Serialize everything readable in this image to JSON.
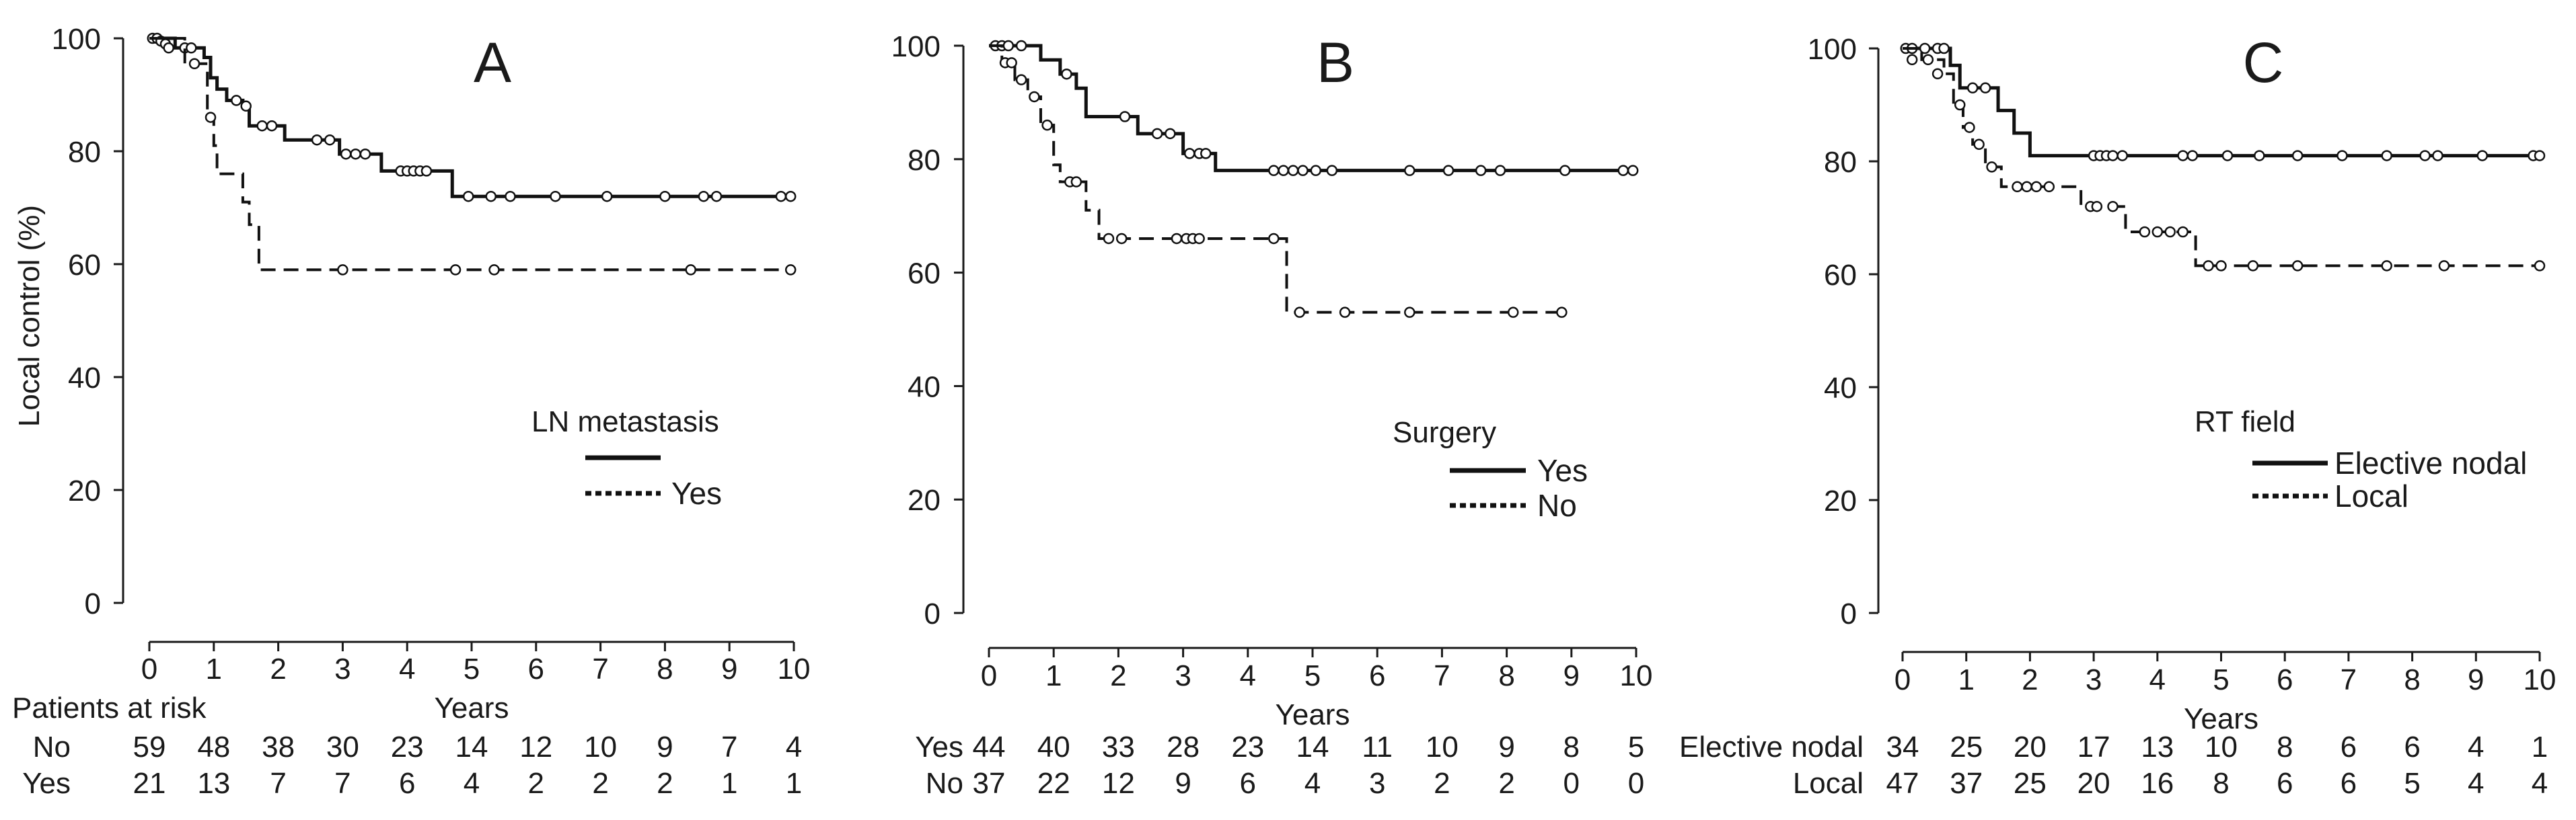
{
  "chart_data": [
    {
      "type": "line",
      "panel": "A",
      "ylabel": "Local control (%)",
      "xlabel": "Years",
      "xlim": [
        0,
        10
      ],
      "ylim": [
        0,
        100
      ],
      "xticks": [
        "0",
        "1",
        "2",
        "3",
        "4",
        "5",
        "6",
        "7",
        "8",
        "9",
        "10"
      ],
      "yticks": [
        "0",
        "20",
        "40",
        "60",
        "80",
        "100"
      ],
      "legend": {
        "title": "LN metastasis",
        "entries": [
          "",
          "Yes"
        ],
        "position": "center-right"
      },
      "series": [
        {
          "name": "No",
          "style": "solid",
          "steps": [
            [
              0,
              100
            ],
            [
              0.4,
              98.3
            ],
            [
              0.85,
              96.6
            ],
            [
              0.95,
              93
            ],
            [
              1.05,
              91
            ],
            [
              1.2,
              89
            ],
            [
              1.45,
              88
            ],
            [
              1.55,
              84.5
            ],
            [
              2.1,
              82
            ],
            [
              2.95,
              79.5
            ],
            [
              3.6,
              76.5
            ],
            [
              4.7,
              72
            ],
            [
              10,
              72
            ]
          ],
          "censored": [
            [
              0.05,
              100
            ],
            [
              0.12,
              100
            ],
            [
              0.18,
              99.5
            ],
            [
              0.25,
              99
            ],
            [
              0.3,
              98.3
            ],
            [
              0.55,
              98.3
            ],
            [
              0.65,
              98.3
            ],
            [
              1.35,
              89
            ],
            [
              1.5,
              88
            ],
            [
              1.75,
              84.5
            ],
            [
              1.9,
              84.5
            ],
            [
              2.6,
              82
            ],
            [
              2.8,
              82
            ],
            [
              3.05,
              79.5
            ],
            [
              3.2,
              79.5
            ],
            [
              3.35,
              79.5
            ],
            [
              3.9,
              76.5
            ],
            [
              4.0,
              76.5
            ],
            [
              4.1,
              76.5
            ],
            [
              4.2,
              76.5
            ],
            [
              4.3,
              76.5
            ],
            [
              4.95,
              72
            ],
            [
              5.3,
              72
            ],
            [
              5.6,
              72
            ],
            [
              6.3,
              72
            ],
            [
              7.1,
              72
            ],
            [
              8.0,
              72
            ],
            [
              8.6,
              72
            ],
            [
              8.8,
              72
            ],
            [
              9.8,
              72
            ],
            [
              9.95,
              72
            ]
          ]
        },
        {
          "name": "Yes",
          "style": "dashed",
          "steps": [
            [
              0,
              100
            ],
            [
              0.55,
              95.5
            ],
            [
              0.9,
              86
            ],
            [
              1.0,
              81
            ],
            [
              1.05,
              76
            ],
            [
              1.45,
              71
            ],
            [
              1.55,
              67
            ],
            [
              1.7,
              59
            ],
            [
              10,
              59
            ]
          ],
          "censored": [
            [
              0.7,
              95.5
            ],
            [
              0.95,
              86
            ],
            [
              3.0,
              59
            ],
            [
              4.75,
              59
            ],
            [
              5.35,
              59
            ],
            [
              8.4,
              59
            ],
            [
              9.95,
              59
            ]
          ]
        }
      ],
      "at_risk": {
        "header": "Patients at risk",
        "rows": [
          {
            "label": "No",
            "values": [
              "59",
              "48",
              "38",
              "30",
              "23",
              "14",
              "12",
              "10",
              "9",
              "7",
              "4"
            ]
          },
          {
            "label": "Yes",
            "values": [
              "21",
              "13",
              "7",
              "7",
              "6",
              "4",
              "2",
              "2",
              "2",
              "1",
              "1"
            ]
          }
        ]
      }
    },
    {
      "type": "line",
      "panel": "B",
      "ylabel": "",
      "xlabel": "Years",
      "xlim": [
        0,
        10
      ],
      "ylim": [
        0,
        100
      ],
      "xticks": [
        "0",
        "1",
        "2",
        "3",
        "4",
        "5",
        "6",
        "7",
        "8",
        "9",
        "10"
      ],
      "yticks": [
        "0",
        "20",
        "40",
        "60",
        "80",
        "100"
      ],
      "legend": {
        "title": "Surgery",
        "entries": [
          "Yes",
          "No"
        ],
        "position": "center-right"
      },
      "series": [
        {
          "name": "Yes",
          "style": "solid",
          "steps": [
            [
              0,
              100
            ],
            [
              0.8,
              97.5
            ],
            [
              1.1,
              95
            ],
            [
              1.35,
              92.5
            ],
            [
              1.5,
              87.5
            ],
            [
              2.3,
              84.5
            ],
            [
              3.0,
              81
            ],
            [
              3.5,
              78
            ],
            [
              10,
              78
            ]
          ],
          "censored": [
            [
              0.1,
              100
            ],
            [
              0.2,
              100
            ],
            [
              0.3,
              100
            ],
            [
              0.5,
              100
            ],
            [
              1.2,
              95
            ],
            [
              2.1,
              87.5
            ],
            [
              2.6,
              84.5
            ],
            [
              2.8,
              84.5
            ],
            [
              3.1,
              81
            ],
            [
              3.25,
              81
            ],
            [
              3.35,
              81
            ],
            [
              4.4,
              78
            ],
            [
              4.55,
              78
            ],
            [
              4.7,
              78
            ],
            [
              4.85,
              78
            ],
            [
              5.05,
              78
            ],
            [
              5.3,
              78
            ],
            [
              6.5,
              78
            ],
            [
              7.1,
              78
            ],
            [
              7.6,
              78
            ],
            [
              7.9,
              78
            ],
            [
              8.9,
              78
            ],
            [
              9.8,
              78
            ],
            [
              9.95,
              78
            ]
          ]
        },
        {
          "name": "No",
          "style": "dashed",
          "steps": [
            [
              0,
              100
            ],
            [
              0.2,
              97
            ],
            [
              0.4,
              94
            ],
            [
              0.6,
              91
            ],
            [
              0.8,
              86
            ],
            [
              1.0,
              79
            ],
            [
              1.1,
              76
            ],
            [
              1.5,
              71
            ],
            [
              1.7,
              66
            ],
            [
              4.6,
              53
            ],
            [
              8.8,
              53
            ]
          ],
          "censored": [
            [
              0.25,
              97
            ],
            [
              0.35,
              97
            ],
            [
              0.5,
              94
            ],
            [
              0.7,
              91
            ],
            [
              0.9,
              86
            ],
            [
              1.25,
              76
            ],
            [
              1.35,
              76
            ],
            [
              1.85,
              66
            ],
            [
              2.05,
              66
            ],
            [
              2.9,
              66
            ],
            [
              3.05,
              66
            ],
            [
              3.15,
              66
            ],
            [
              3.25,
              66
            ],
            [
              4.4,
              66
            ],
            [
              4.8,
              53
            ],
            [
              5.5,
              53
            ],
            [
              6.5,
              53
            ],
            [
              8.1,
              53
            ],
            [
              8.85,
              53
            ]
          ]
        }
      ],
      "at_risk": {
        "header": "",
        "rows": [
          {
            "label": "Yes",
            "values": [
              "44",
              "40",
              "33",
              "28",
              "23",
              "14",
              "11",
              "10",
              "9",
              "8",
              "5"
            ]
          },
          {
            "label": "No",
            "values": [
              "37",
              "22",
              "12",
              "9",
              "6",
              "4",
              "3",
              "2",
              "2",
              "0",
              "0"
            ]
          }
        ]
      }
    },
    {
      "type": "line",
      "panel": "C",
      "ylabel": "",
      "xlabel": "Years",
      "xlim": [
        0,
        10
      ],
      "ylim": [
        0,
        100
      ],
      "xticks": [
        "0",
        "1",
        "2",
        "3",
        "4",
        "5",
        "6",
        "7",
        "8",
        "9",
        "10"
      ],
      "yticks": [
        "0",
        "20",
        "40",
        "60",
        "80",
        "100"
      ],
      "legend": {
        "title": "RT field",
        "entries": [
          "Elective nodal",
          "Local"
        ],
        "position": "center-right"
      },
      "series": [
        {
          "name": "Elective nodal",
          "style": "solid",
          "steps": [
            [
              0,
              100
            ],
            [
              0.75,
              97
            ],
            [
              0.9,
              93
            ],
            [
              1.5,
              89
            ],
            [
              1.75,
              85
            ],
            [
              2.0,
              81
            ],
            [
              10,
              81
            ]
          ],
          "censored": [
            [
              0.05,
              100
            ],
            [
              0.15,
              100
            ],
            [
              0.35,
              100
            ],
            [
              0.55,
              100
            ],
            [
              0.65,
              100
            ],
            [
              1.1,
              93
            ],
            [
              1.3,
              93
            ],
            [
              3.0,
              81
            ],
            [
              3.1,
              81
            ],
            [
              3.2,
              81
            ],
            [
              3.3,
              81
            ],
            [
              3.45,
              81
            ],
            [
              4.4,
              81
            ],
            [
              4.55,
              81
            ],
            [
              5.1,
              81
            ],
            [
              5.6,
              81
            ],
            [
              6.2,
              81
            ],
            [
              6.9,
              81
            ],
            [
              7.6,
              81
            ],
            [
              8.2,
              81
            ],
            [
              8.4,
              81
            ],
            [
              9.1,
              81
            ],
            [
              9.9,
              81
            ],
            [
              10,
              81
            ]
          ]
        },
        {
          "name": "Local",
          "style": "dashed",
          "steps": [
            [
              0,
              100
            ],
            [
              0.3,
              98
            ],
            [
              0.65,
              95.5
            ],
            [
              0.8,
              90
            ],
            [
              0.95,
              86
            ],
            [
              1.1,
              83
            ],
            [
              1.3,
              79
            ],
            [
              1.55,
              75.5
            ],
            [
              2.8,
              72
            ],
            [
              3.5,
              67.5
            ],
            [
              4.6,
              61.5
            ],
            [
              10,
              61.5
            ]
          ],
          "censored": [
            [
              0.15,
              98
            ],
            [
              0.4,
              98
            ],
            [
              0.55,
              95.5
            ],
            [
              0.9,
              90
            ],
            [
              1.05,
              86
            ],
            [
              1.2,
              83
            ],
            [
              1.4,
              79
            ],
            [
              1.8,
              75.5
            ],
            [
              1.95,
              75.5
            ],
            [
              2.1,
              75.5
            ],
            [
              2.3,
              75.5
            ],
            [
              2.95,
              72
            ],
            [
              3.05,
              72
            ],
            [
              3.3,
              72
            ],
            [
              3.8,
              67.5
            ],
            [
              4.0,
              67.5
            ],
            [
              4.2,
              67.5
            ],
            [
              4.4,
              67.5
            ],
            [
              4.8,
              61.5
            ],
            [
              5.0,
              61.5
            ],
            [
              5.5,
              61.5
            ],
            [
              6.2,
              61.5
            ],
            [
              7.6,
              61.5
            ],
            [
              8.5,
              61.5
            ],
            [
              10,
              61.5
            ]
          ]
        }
      ],
      "at_risk": {
        "header": "",
        "rows": [
          {
            "label": "Elective nodal",
            "values": [
              "34",
              "25",
              "20",
              "17",
              "13",
              "10",
              "8",
              "6",
              "6",
              "4",
              "1"
            ]
          },
          {
            "label": "Local",
            "values": [
              "47",
              "37",
              "25",
              "20",
              "16",
              "8",
              "6",
              "6",
              "5",
              "4",
              "4"
            ]
          }
        ]
      }
    }
  ]
}
